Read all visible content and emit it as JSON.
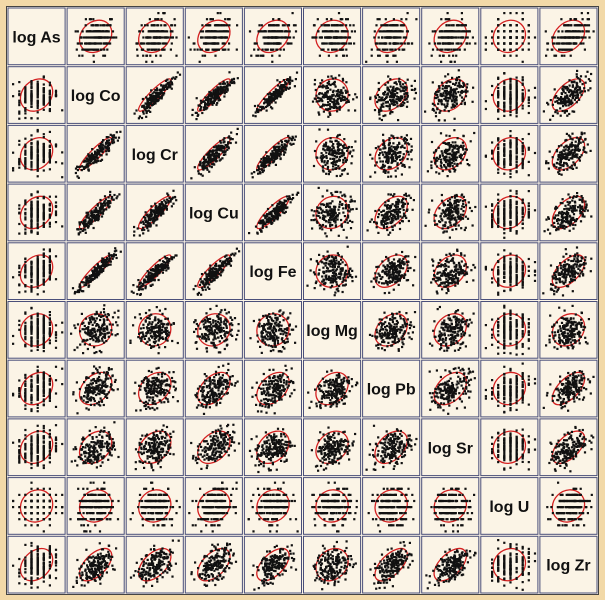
{
  "chart_data": {
    "type": "scatter",
    "subtype": "scatterplot-matrix",
    "variables": [
      "log As",
      "log Co",
      "log Cr",
      "log Cu",
      "log Fe",
      "log Mg",
      "log Pb",
      "log Sr",
      "log U",
      "log Zr"
    ],
    "points_per_panel": 180,
    "ellipse": true,
    "grid": false,
    "colors": {
      "points": "#111111",
      "ellipse": "#d42020",
      "panel_border": "#4a4f7a",
      "background": "#f2d9a8"
    },
    "correlation_estimates": [
      [
        1.0,
        0.2,
        0.2,
        0.25,
        0.25,
        0.1,
        0.25,
        0.2,
        0.1,
        0.3
      ],
      [
        0.2,
        1.0,
        0.9,
        0.9,
        0.92,
        0.05,
        0.35,
        0.3,
        0.1,
        0.55
      ],
      [
        0.2,
        0.9,
        1.0,
        0.88,
        0.9,
        0.05,
        0.3,
        0.3,
        0.1,
        0.5
      ],
      [
        0.25,
        0.9,
        0.88,
        1.0,
        0.88,
        0.1,
        0.45,
        0.35,
        0.15,
        0.5
      ],
      [
        0.25,
        0.92,
        0.9,
        0.88,
        1.0,
        0.05,
        0.4,
        0.3,
        0.1,
        0.55
      ],
      [
        0.1,
        0.05,
        0.05,
        0.1,
        0.05,
        1.0,
        0.3,
        0.25,
        0.05,
        0.2
      ],
      [
        0.25,
        0.35,
        0.3,
        0.45,
        0.4,
        0.3,
        1.0,
        0.4,
        0.1,
        0.6
      ],
      [
        0.2,
        0.3,
        0.3,
        0.35,
        0.3,
        0.25,
        0.4,
        1.0,
        0.1,
        0.55
      ],
      [
        0.1,
        0.1,
        0.1,
        0.15,
        0.1,
        0.05,
        0.1,
        0.1,
        1.0,
        0.1
      ],
      [
        0.3,
        0.55,
        0.5,
        0.5,
        0.55,
        0.2,
        0.6,
        0.55,
        0.1,
        1.0
      ]
    ]
  }
}
